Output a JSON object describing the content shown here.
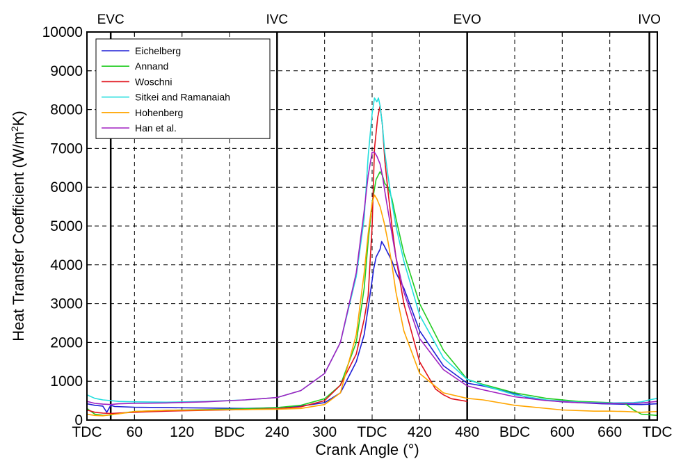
{
  "chart_data": {
    "type": "line",
    "xlabel": "Crank Angle (°)",
    "ylabel_main": "Heat Transfer Coefficient (W/m",
    "ylabel_sup": "2",
    "ylabel_end": "K)",
    "xlim": [
      0,
      720
    ],
    "ylim": [
      0,
      10000
    ],
    "grid": true,
    "legend_position": "top-left",
    "x_ticks": [
      {
        "value": 0,
        "label": "TDC"
      },
      {
        "value": 60,
        "label": "60"
      },
      {
        "value": 120,
        "label": "120"
      },
      {
        "value": 180,
        "label": "BDC"
      },
      {
        "value": 240,
        "label": "240"
      },
      {
        "value": 300,
        "label": "300"
      },
      {
        "value": 360,
        "label": "TDC"
      },
      {
        "value": 420,
        "label": "420"
      },
      {
        "value": 480,
        "label": "480"
      },
      {
        "value": 540,
        "label": "BDC"
      },
      {
        "value": 600,
        "label": "600"
      },
      {
        "value": 660,
        "label": "660"
      },
      {
        "value": 720,
        "label": "TDC"
      }
    ],
    "y_ticks": [
      0,
      1000,
      2000,
      3000,
      4000,
      5000,
      6000,
      7000,
      8000,
      9000,
      10000
    ],
    "events": [
      {
        "label": "EVC",
        "x": 30
      },
      {
        "label": "IVC",
        "x": 240
      },
      {
        "label": "EVO",
        "x": 480
      },
      {
        "label": "IVO",
        "x": 710
      }
    ],
    "series": [
      {
        "name": "Eichelberg",
        "color": "#1f1fd6",
        "x": [
          0,
          10,
          20,
          25,
          30,
          35,
          60,
          100,
          150,
          200,
          240,
          270,
          300,
          320,
          340,
          350,
          355,
          360,
          362,
          365,
          370,
          372,
          375,
          380,
          385,
          390,
          400,
          420,
          450,
          480,
          500,
          540,
          560,
          600,
          650,
          700,
          720
        ],
        "y": [
          420,
          380,
          360,
          200,
          380,
          350,
          330,
          320,
          310,
          300,
          320,
          360,
          450,
          700,
          1500,
          2200,
          2900,
          3600,
          3900,
          4200,
          4400,
          4600,
          4500,
          4300,
          4100,
          3800,
          3400,
          2300,
          1400,
          950,
          880,
          680,
          560,
          470,
          420,
          400,
          420
        ]
      },
      {
        "name": "Annand",
        "color": "#22cc22",
        "x": [
          0,
          10,
          20,
          30,
          40,
          60,
          100,
          150,
          200,
          240,
          270,
          300,
          320,
          340,
          350,
          355,
          360,
          365,
          370,
          373,
          376,
          380,
          385,
          390,
          400,
          420,
          450,
          480,
          500,
          540,
          580,
          620,
          660,
          680,
          690,
          700,
          720
        ],
        "y": [
          300,
          150,
          120,
          130,
          170,
          220,
          250,
          270,
          290,
          320,
          380,
          550,
          900,
          2000,
          3400,
          4600,
          5600,
          6200,
          6400,
          6300,
          6100,
          6000,
          5700,
          5200,
          4300,
          3000,
          1800,
          1050,
          920,
          700,
          560,
          480,
          450,
          420,
          260,
          150,
          120
        ]
      },
      {
        "name": "Woschni",
        "color": "#e0101a",
        "x": [
          0,
          10,
          20,
          30,
          60,
          100,
          150,
          200,
          240,
          270,
          300,
          320,
          340,
          350,
          355,
          360,
          363,
          367,
          370,
          373,
          376,
          380,
          385,
          390,
          400,
          420,
          440,
          450,
          460,
          480
        ],
        "y": [
          260,
          200,
          180,
          170,
          200,
          230,
          250,
          270,
          290,
          340,
          500,
          900,
          1700,
          2600,
          3200,
          5000,
          7000,
          7800,
          8100,
          7600,
          6700,
          5900,
          5000,
          4200,
          3000,
          1500,
          800,
          650,
          550,
          480
        ]
      },
      {
        "name": "Sitkei and Ramanaiah",
        "color": "#22dede",
        "x": [
          0,
          10,
          20,
          30,
          40,
          60,
          100,
          150,
          200,
          240,
          270,
          300,
          320,
          340,
          350,
          355,
          360,
          363,
          366,
          368,
          370,
          373,
          376,
          380,
          385,
          390,
          400,
          420,
          450,
          480,
          500,
          540,
          580,
          620,
          660,
          690,
          700,
          710,
          720
        ],
        "y": [
          650,
          560,
          520,
          500,
          480,
          470,
          460,
          480,
          520,
          580,
          760,
          1200,
          2000,
          3700,
          5200,
          6800,
          7900,
          8300,
          8200,
          8300,
          8100,
          7600,
          6900,
          6300,
          5600,
          5000,
          4100,
          2700,
          1600,
          1050,
          900,
          650,
          520,
          460,
          440,
          450,
          470,
          520,
          560
        ]
      },
      {
        "name": "Hohenberg",
        "color": "#ffa500",
        "x": [
          0,
          10,
          20,
          30,
          40,
          60,
          100,
          150,
          200,
          240,
          270,
          300,
          320,
          340,
          350,
          355,
          360,
          363,
          366,
          370,
          375,
          380,
          385,
          390,
          400,
          420,
          450,
          480,
          500,
          540,
          600,
          640,
          660,
          680,
          700,
          720
        ],
        "y": [
          150,
          120,
          110,
          140,
          160,
          220,
          250,
          260,
          270,
          280,
          300,
          400,
          700,
          2200,
          3800,
          4800,
          5600,
          5800,
          5700,
          5500,
          5100,
          4600,
          4000,
          3300,
          2300,
          1200,
          700,
          560,
          520,
          380,
          260,
          230,
          230,
          220,
          200,
          220
        ]
      },
      {
        "name": "Han et al.",
        "color": "#a020c0",
        "x": [
          0,
          10,
          20,
          30,
          40,
          60,
          100,
          150,
          200,
          240,
          270,
          300,
          320,
          340,
          350,
          355,
          360,
          363,
          366,
          370,
          373,
          376,
          380,
          385,
          390,
          400,
          420,
          450,
          480,
          500,
          540,
          580,
          620,
          660,
          690,
          700,
          720
        ],
        "y": [
          480,
          430,
          410,
          400,
          420,
          430,
          440,
          470,
          520,
          580,
          760,
          1200,
          2000,
          3800,
          5400,
          6300,
          6900,
          6900,
          6800,
          6600,
          6300,
          5900,
          5400,
          4800,
          4200,
          3300,
          2100,
          1300,
          880,
          780,
          600,
          500,
          450,
          430,
          430,
          440,
          480
        ]
      }
    ]
  }
}
